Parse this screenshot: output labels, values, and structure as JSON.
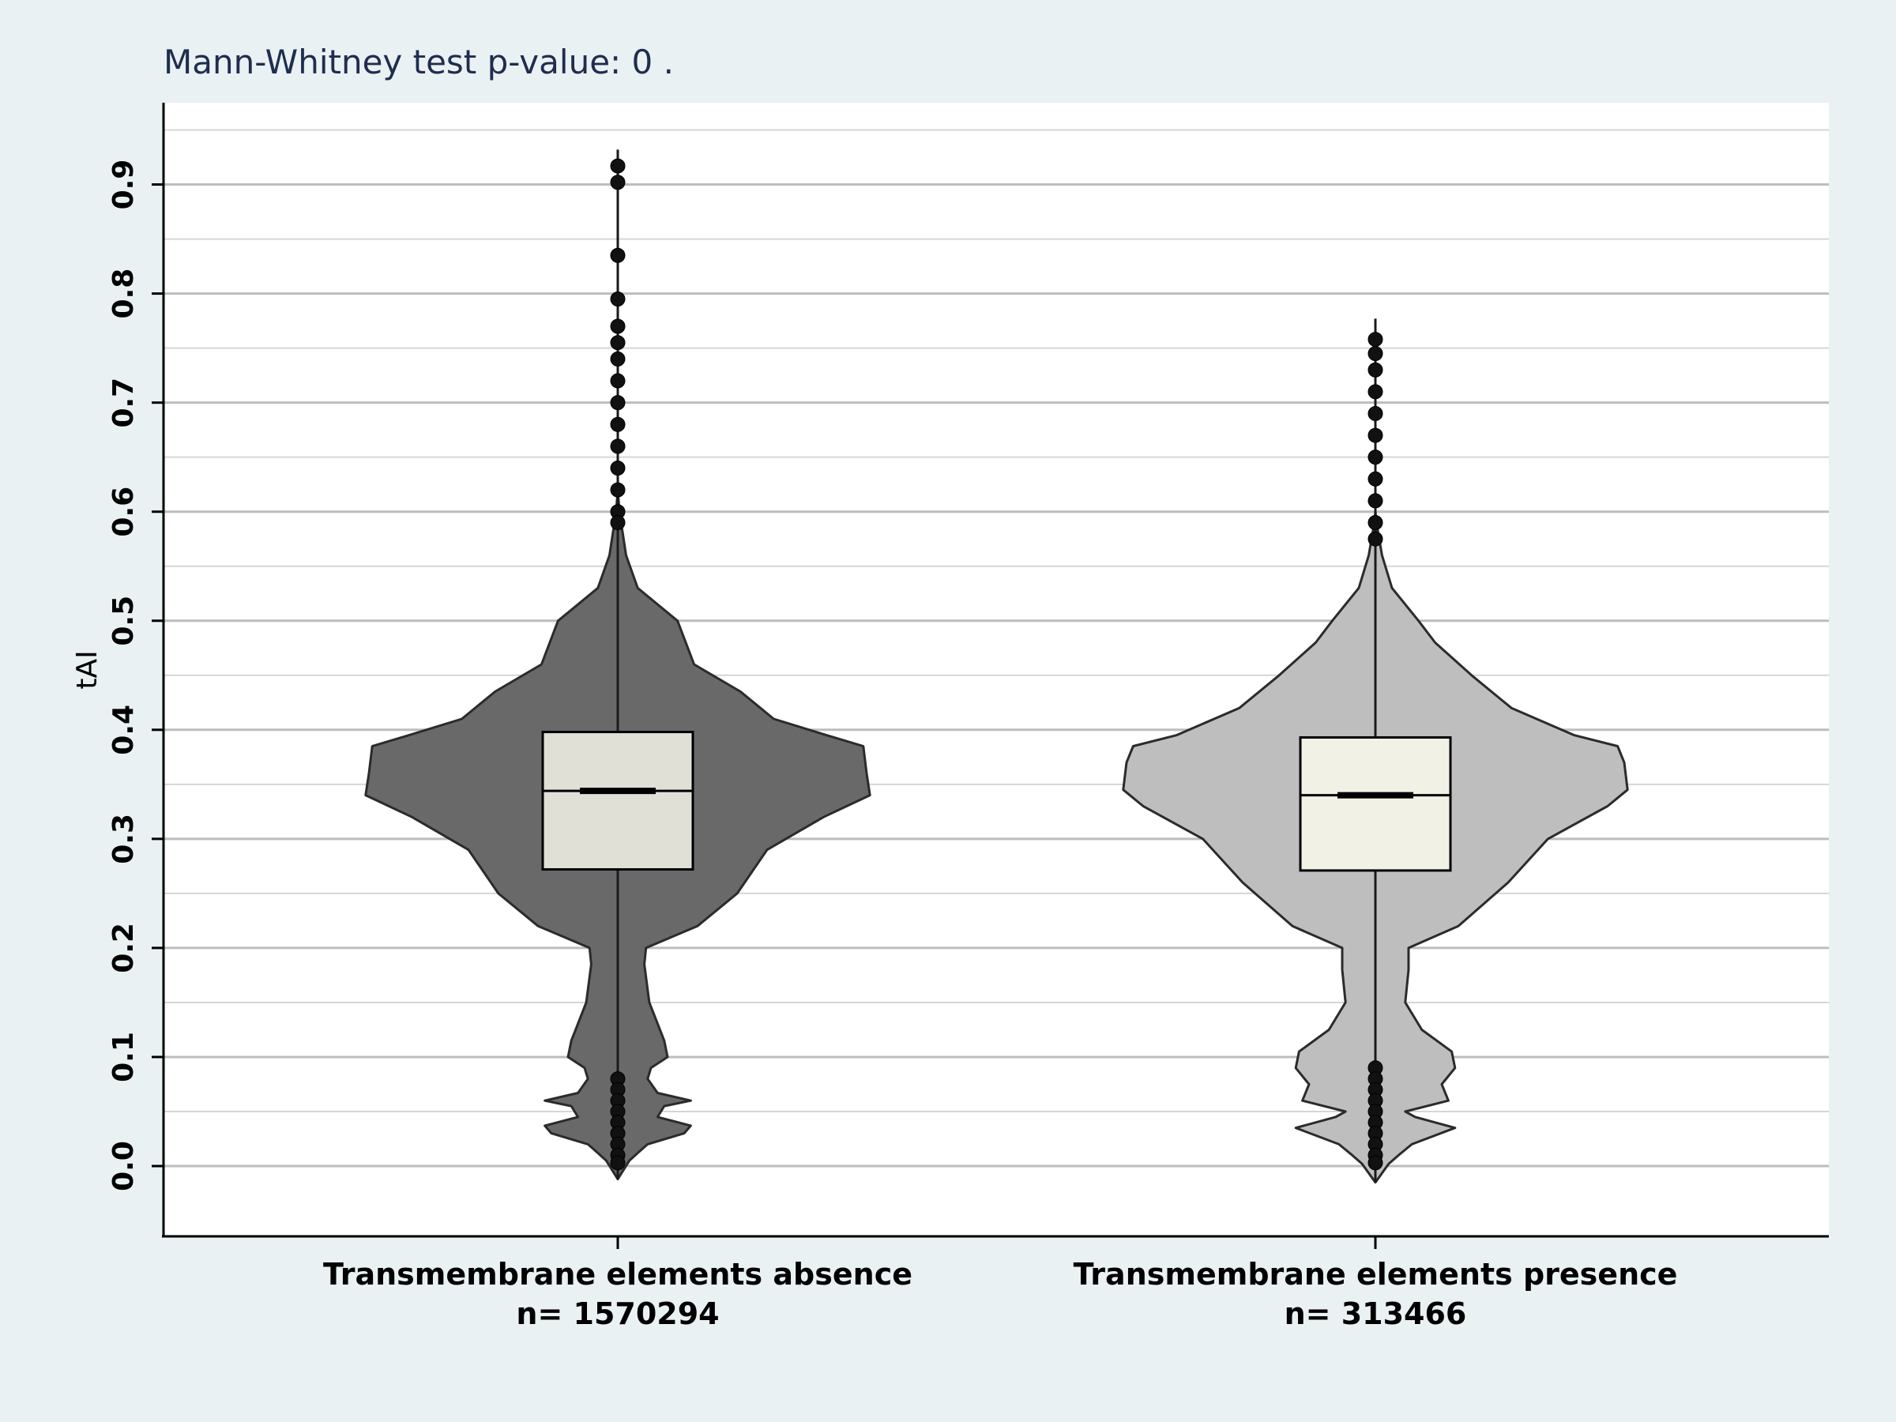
{
  "chart_data": {
    "type": "violin",
    "title": "Mann-Whitney test p-value:  0 .",
    "xlabel": "",
    "ylabel": "tAI",
    "ylim": [
      -0.063,
      0.975
    ],
    "y_ticks": [
      0.0,
      0.1,
      0.2,
      0.3,
      0.4,
      0.5,
      0.6,
      0.7,
      0.8,
      0.9
    ],
    "y_tick_labels": [
      "0.0",
      "0.1",
      "0.2",
      "0.3",
      "0.4",
      "0.5",
      "0.6",
      "0.7",
      "0.8",
      "0.9"
    ],
    "grid": "horizontal major and minor lines",
    "categories": [
      "Transmembrane elements absence",
      "Transmembrane elements presence"
    ],
    "category_counts": [
      "n= 1570294",
      "n= 313466"
    ],
    "series": [
      {
        "violin_color": "#696969",
        "box_color": "#e0e0d6",
        "whisker_low": -0.012,
        "q1": 0.272,
        "median": 0.344,
        "q3": 0.398,
        "whisker_high": 0.932,
        "outliers": [
          0.917,
          0.902,
          0.835,
          0.795,
          0.77,
          0.755,
          0.74,
          0.72,
          0.7,
          0.68,
          0.66,
          0.64,
          0.62,
          0.6,
          0.59,
          0.08,
          0.07,
          0.06,
          0.05,
          0.04,
          0.03,
          0.02,
          0.01,
          0.003
        ],
        "density": [
          [
            -0.012,
            0.0
          ],
          [
            0.005,
            0.035
          ],
          [
            0.012,
            0.06
          ],
          [
            0.02,
            0.09
          ],
          [
            0.03,
            0.2
          ],
          [
            0.037,
            0.22
          ],
          [
            0.045,
            0.12
          ],
          [
            0.055,
            0.14
          ],
          [
            0.06,
            0.22
          ],
          [
            0.067,
            0.12
          ],
          [
            0.08,
            0.09
          ],
          [
            0.09,
            0.1
          ],
          [
            0.1,
            0.15
          ],
          [
            0.115,
            0.14
          ],
          [
            0.15,
            0.095
          ],
          [
            0.185,
            0.08
          ],
          [
            0.2,
            0.085
          ],
          [
            0.22,
            0.24
          ],
          [
            0.25,
            0.36
          ],
          [
            0.29,
            0.45
          ],
          [
            0.32,
            0.62
          ],
          [
            0.34,
            0.76
          ],
          [
            0.36,
            0.75
          ],
          [
            0.385,
            0.74
          ],
          [
            0.395,
            0.63
          ],
          [
            0.41,
            0.47
          ],
          [
            0.435,
            0.37
          ],
          [
            0.46,
            0.23
          ],
          [
            0.5,
            0.18
          ],
          [
            0.53,
            0.06
          ],
          [
            0.56,
            0.025
          ],
          [
            0.6,
            0.005
          ],
          [
            0.62,
            0.0
          ]
        ]
      },
      {
        "violin_color": "#bebebe",
        "box_color": "#f1f1e6",
        "whisker_low": -0.015,
        "q1": 0.271,
        "median": 0.34,
        "q3": 0.393,
        "whisker_high": 0.777,
        "outliers": [
          0.758,
          0.745,
          0.73,
          0.71,
          0.69,
          0.67,
          0.65,
          0.63,
          0.61,
          0.59,
          0.575,
          0.09,
          0.08,
          0.07,
          0.06,
          0.05,
          0.04,
          0.03,
          0.02,
          0.01,
          0.003
        ],
        "density": [
          [
            -0.015,
            0.0
          ],
          [
            0.002,
            0.04
          ],
          [
            0.01,
            0.07
          ],
          [
            0.02,
            0.11
          ],
          [
            0.035,
            0.24
          ],
          [
            0.045,
            0.12
          ],
          [
            0.05,
            0.09
          ],
          [
            0.06,
            0.22
          ],
          [
            0.075,
            0.2
          ],
          [
            0.09,
            0.24
          ],
          [
            0.105,
            0.23
          ],
          [
            0.125,
            0.14
          ],
          [
            0.15,
            0.09
          ],
          [
            0.18,
            0.1
          ],
          [
            0.2,
            0.1
          ],
          [
            0.22,
            0.25
          ],
          [
            0.26,
            0.4
          ],
          [
            0.3,
            0.52
          ],
          [
            0.33,
            0.7
          ],
          [
            0.345,
            0.76
          ],
          [
            0.37,
            0.75
          ],
          [
            0.385,
            0.73
          ],
          [
            0.395,
            0.6
          ],
          [
            0.42,
            0.41
          ],
          [
            0.45,
            0.29
          ],
          [
            0.48,
            0.18
          ],
          [
            0.5,
            0.13
          ],
          [
            0.53,
            0.05
          ],
          [
            0.56,
            0.02
          ],
          [
            0.59,
            0.003
          ],
          [
            0.6,
            0.0
          ]
        ]
      }
    ]
  }
}
